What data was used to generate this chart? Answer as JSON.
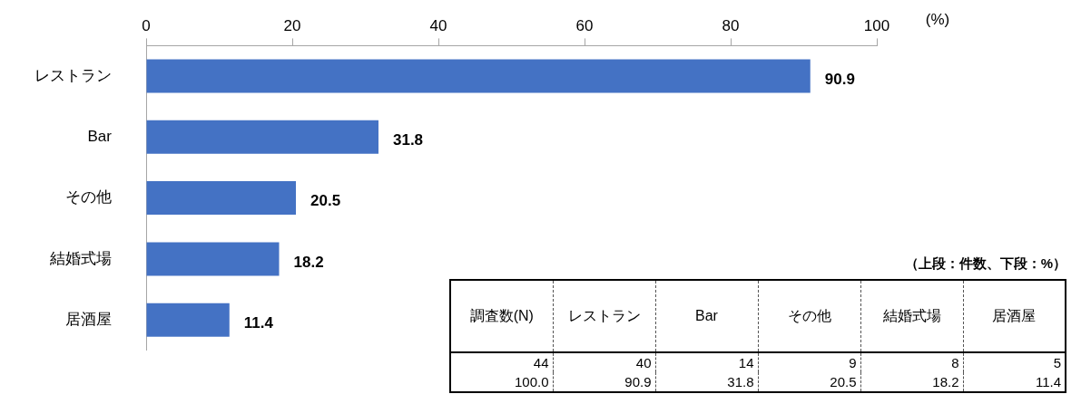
{
  "chart_data": [
    {
      "type": "bar",
      "orientation": "horizontal",
      "xlabel": "(%)",
      "categories": [
        "レストラン",
        "Bar",
        "その他",
        "結婚式場",
        "居酒屋"
      ],
      "values": [
        90.9,
        31.8,
        20.5,
        18.2,
        11.4
      ],
      "color": "#4472c4",
      "xlim": [
        0,
        100
      ],
      "xticks": [
        0,
        20,
        40,
        60,
        80,
        100
      ],
      "data_labels": true
    },
    {
      "type": "other",
      "title": "（上段：件数、下段：%）",
      "categories": [
        "調査数(N)",
        "レストラン",
        "Bar",
        "その他",
        "結婚式場",
        "居酒屋"
      ],
      "data_labels": true,
      "series": [
        {
          "values": [
            44,
            40,
            14,
            9,
            8,
            5
          ]
        },
        {
          "values": [
            100.0,
            90.9,
            31.8,
            20.5,
            18.2,
            11.4
          ],
          "value_labels": [
            "100.0",
            "90.9",
            "31.8",
            "20.5",
            "18.2",
            "11.4"
          ]
        }
      ]
    }
  ]
}
